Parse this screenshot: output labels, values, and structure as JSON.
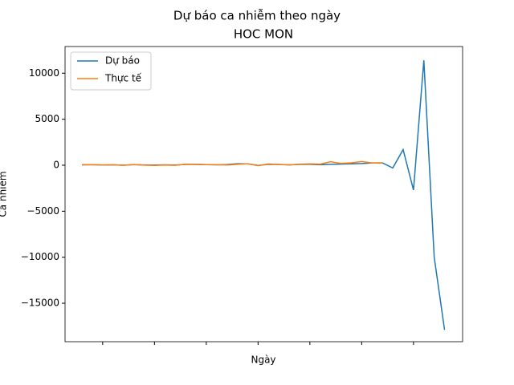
{
  "chart_data": {
    "type": "line",
    "title": "Dự báo ca nhiễm theo ngày",
    "subtitle": "HOC MON",
    "x_label": "Ngày",
    "y_label": "Ca nhiễm",
    "x": [
      0,
      1,
      2,
      3,
      4,
      5,
      6,
      7,
      8,
      9,
      10,
      11,
      12,
      13,
      14,
      15,
      16,
      17,
      18,
      19,
      20,
      21,
      22,
      23,
      24,
      25,
      26,
      27,
      28,
      29,
      30,
      31,
      32,
      33,
      34,
      35
    ],
    "series": [
      {
        "name": "Dự báo",
        "color": "#1f77b4",
        "values": [
          50,
          50,
          30,
          40,
          0,
          60,
          30,
          20,
          40,
          20,
          80,
          80,
          60,
          40,
          70,
          160,
          150,
          -20,
          100,
          80,
          40,
          80,
          100,
          50,
          100,
          120,
          150,
          180,
          250,
          250,
          -300,
          1700,
          -2700,
          11400,
          -10000,
          -17900
        ]
      },
      {
        "name": "Thực tế",
        "color": "#ff7f0e",
        "values": [
          30,
          60,
          20,
          50,
          -10,
          70,
          10,
          -20,
          20,
          -10,
          120,
          110,
          70,
          60,
          20,
          100,
          160,
          -40,
          140,
          90,
          30,
          120,
          150,
          120,
          380,
          200,
          260,
          400,
          250,
          250,
          null,
          null,
          null,
          null,
          null,
          null
        ]
      }
    ],
    "xlim": [
      -1.63,
      36.74
    ],
    "xticks": [
      2,
      7,
      12,
      17,
      22,
      27,
      32
    ],
    "ylim": [
      -19180,
      12900
    ],
    "yticks": [
      {
        "value": -15000,
        "label": "−15000"
      },
      {
        "value": -10000,
        "label": "−10000"
      },
      {
        "value": -5000,
        "label": "−5000"
      },
      0,
      5000,
      10000
    ],
    "legend": "upper left"
  }
}
